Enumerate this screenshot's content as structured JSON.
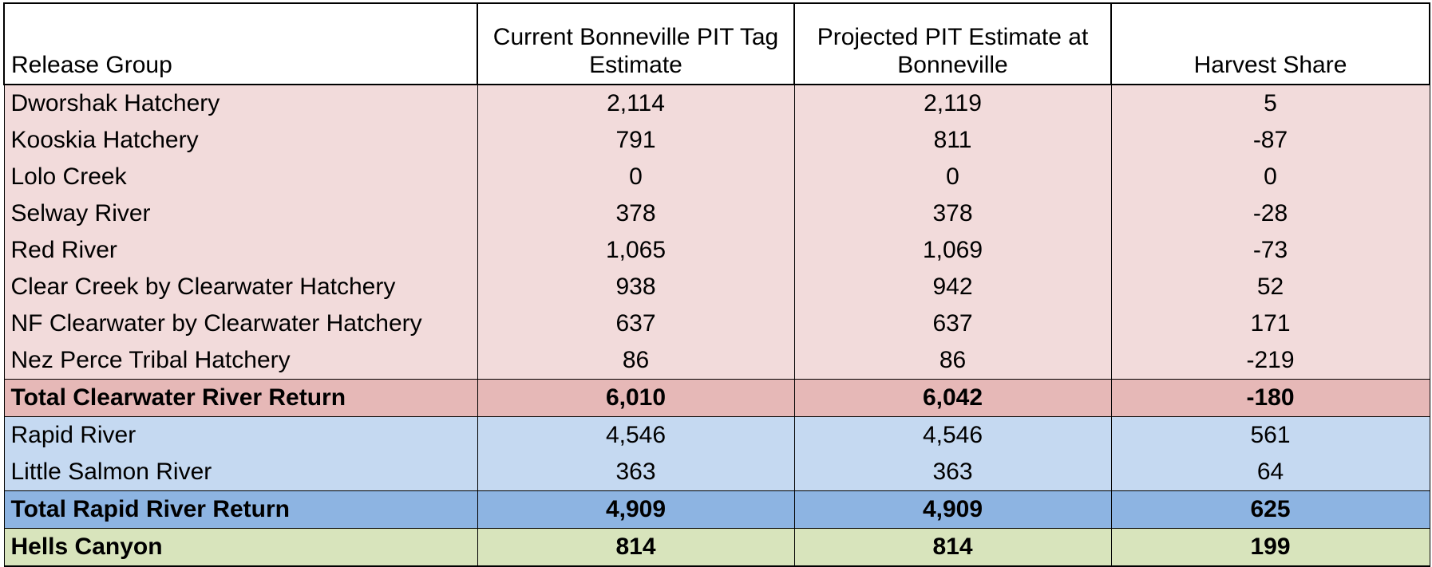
{
  "headers": {
    "release_group": "Release Group",
    "current_estimate": "Current Bonneville PIT Tag Estimate",
    "projected_estimate": "Projected PIT Estimate at Bonneville",
    "harvest_share": "Harvest Share"
  },
  "clearwater": {
    "rows": [
      {
        "group": "Dworshak Hatchery",
        "current": "2,114",
        "projected": "2,119",
        "harvest": "5"
      },
      {
        "group": "Kooskia Hatchery",
        "current": "791",
        "projected": "811",
        "harvest": "-87"
      },
      {
        "group": "Lolo Creek",
        "current": "0",
        "projected": "0",
        "harvest": "0"
      },
      {
        "group": "Selway River",
        "current": "378",
        "projected": "378",
        "harvest": "-28"
      },
      {
        "group": "Red River",
        "current": "1,065",
        "projected": "1,069",
        "harvest": "-73"
      },
      {
        "group": "Clear Creek by Clearwater Hatchery",
        "current": "938",
        "projected": "942",
        "harvest": "52"
      },
      {
        "group": "NF Clearwater by Clearwater Hatchery",
        "current": "637",
        "projected": "637",
        "harvest": "171"
      },
      {
        "group": "Nez Perce Tribal Hatchery",
        "current": "86",
        "projected": "86",
        "harvest": "-219"
      }
    ],
    "total": {
      "group": "Total Clearwater River Return",
      "current": "6,010",
      "projected": "6,042",
      "harvest": "-180"
    }
  },
  "rapid_river": {
    "rows": [
      {
        "group": "Rapid River",
        "current": "4,546",
        "projected": "4,546",
        "harvest": "561"
      },
      {
        "group": "Little Salmon River",
        "current": "363",
        "projected": "363",
        "harvest": "64"
      }
    ],
    "total": {
      "group": "Total Rapid River Return",
      "current": "4,909",
      "projected": "4,909",
      "harvest": "625"
    }
  },
  "hells_canyon": {
    "group": "Hells Canyon",
    "current": "814",
    "projected": "814",
    "harvest": "199"
  },
  "colors": {
    "clearwater_row": "#f2dbdb",
    "clearwater_total": "#e6b8b7",
    "rapid_row": "#c5d9f1",
    "rapid_total": "#8db4e2",
    "hells_canyon": "#d8e4bc"
  }
}
